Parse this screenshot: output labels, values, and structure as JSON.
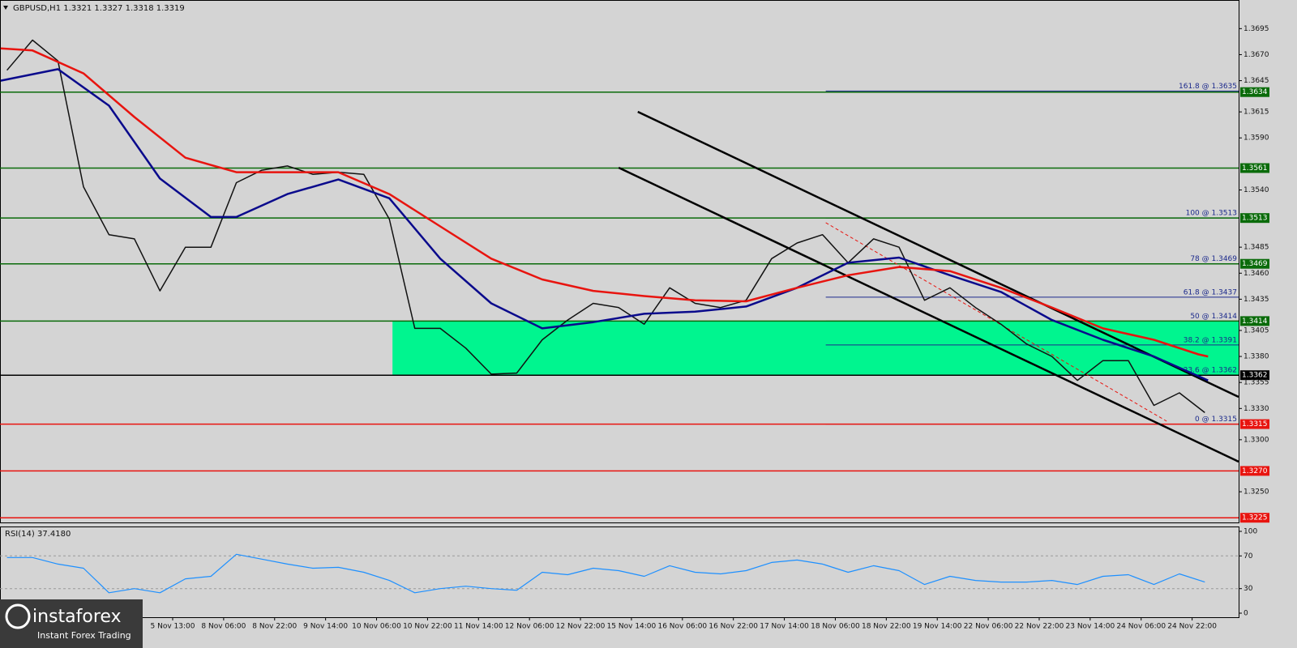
{
  "header": "GBPUSD,H1  1.3321 1.3327 1.3318 1.3319",
  "logo": {
    "name": "instaforex",
    "tagline": "Instant Forex Trading"
  },
  "chart_data": [
    {
      "type": "line",
      "xlim": [
        -54.2,
        334.6
      ],
      "ylim": [
        1.32205,
        1.37225
      ],
      "xticks": [
        {
          "value": 0,
          "label": "5 Nov 13:00"
        },
        {
          "value": 16,
          "label": "8 Nov 06:00"
        },
        {
          "value": 32,
          "label": "8 Nov 22:00"
        },
        {
          "value": 48,
          "label": "9 Nov 14:00"
        },
        {
          "value": 64,
          "label": "10 Nov 06:00"
        },
        {
          "value": 80,
          "label": "10 Nov 22:00"
        },
        {
          "value": 96,
          "label": "11 Nov 14:00"
        },
        {
          "value": 112,
          "label": "12 Nov 06:00"
        },
        {
          "value": 128,
          "label": "12 Nov 22:00"
        },
        {
          "value": 144,
          "label": "15 Nov 14:00"
        },
        {
          "value": 160,
          "label": "16 Nov 06:00"
        },
        {
          "value": 176,
          "label": "16 Nov 22:00"
        },
        {
          "value": 192,
          "label": "17 Nov 14:00"
        },
        {
          "value": 208,
          "label": "18 Nov 06:00"
        },
        {
          "value": 224,
          "label": "18 Nov 22:00"
        },
        {
          "value": 240,
          "label": "19 Nov 14:00"
        },
        {
          "value": 256,
          "label": "22 Nov 06:00"
        },
        {
          "value": 272,
          "label": "22 Nov 22:00"
        },
        {
          "value": 288,
          "label": "23 Nov 14:00"
        },
        {
          "value": 304,
          "label": "24 Nov 06:00"
        },
        {
          "value": 320,
          "label": "24 Nov 22:00"
        }
      ],
      "yticks": [
        1.3695,
        {
          "value": 1.367,
          "label": "1.3670"
        },
        1.3645,
        1.3615,
        {
          "value": 1.359,
          "label": "1.3590"
        },
        {
          "value": 1.354,
          "label": "1.3540"
        },
        1.3485,
        {
          "value": 1.346,
          "label": "1.3460"
        },
        1.3435,
        1.3405,
        {
          "value": 1.338,
          "label": "1.3380"
        },
        1.3355,
        {
          "value": 1.333,
          "label": "1.3330"
        },
        {
          "value": 1.33,
          "label": "1.3300"
        },
        {
          "value": 1.325,
          "label": "1.3250"
        }
      ],
      "series": [
        {
          "color": "#111111",
          "x": [
            -52,
            -44,
            -36,
            -28,
            -20,
            -12,
            -4,
            4,
            12,
            20,
            28,
            36,
            44,
            52,
            60,
            68,
            76,
            84,
            92,
            100,
            108,
            116,
            124,
            132,
            140,
            148,
            156,
            164,
            172,
            180,
            188,
            196,
            204,
            212,
            220,
            228,
            236,
            244,
            252,
            260,
            268,
            276,
            284,
            292,
            300,
            308,
            316,
            324
          ],
          "values": [
            1.3655,
            1.3684,
            1.3664,
            1.3543,
            1.3497,
            1.3493,
            1.3443,
            1.3485,
            1.3485,
            1.3547,
            1.3559,
            1.3563,
            1.3555,
            1.3557,
            1.3555,
            1.3512,
            1.3407,
            1.3407,
            1.3388,
            1.3363,
            1.3364,
            1.3396,
            1.3415,
            1.3431,
            1.3427,
            1.3411,
            1.3446,
            1.3431,
            1.3427,
            1.3434,
            1.3474,
            1.3489,
            1.3497,
            1.347,
            1.3493,
            1.3485,
            1.3434,
            1.3446,
            1.3427,
            1.3411,
            1.3392,
            1.338,
            1.3357,
            1.3376,
            1.3376,
            1.3333,
            1.3345,
            1.3326
          ]
        },
        {
          "color": "#0a0a8c",
          "x": [
            -54,
            -36,
            -20,
            -4,
            12,
            20,
            36,
            52,
            68,
            84,
            100,
            116,
            132,
            148,
            164,
            180,
            196,
            212,
            228,
            244,
            260,
            276,
            292,
            308,
            325
          ],
          "values": [
            1.3645,
            1.3656,
            1.3621,
            1.3551,
            1.3514,
            1.3514,
            1.3536,
            1.355,
            1.3532,
            1.3474,
            1.3431,
            1.3407,
            1.3413,
            1.3421,
            1.3423,
            1.3428,
            1.3446,
            1.347,
            1.3475,
            1.3458,
            1.3442,
            1.3415,
            1.3396,
            1.338,
            1.3357
          ]
        },
        {
          "color": "#e8140f",
          "x": [
            -54,
            -44,
            -28,
            -12,
            4,
            20,
            36,
            52,
            68,
            84,
            100,
            116,
            132,
            148,
            164,
            180,
            196,
            212,
            228,
            244,
            260,
            276,
            292,
            308,
            322,
            325
          ],
          "values": [
            1.3676,
            1.3674,
            1.3652,
            1.361,
            1.3571,
            1.3557,
            1.3557,
            1.3557,
            1.3536,
            1.3505,
            1.3474,
            1.3454,
            1.3443,
            1.3438,
            1.3434,
            1.3433,
            1.3446,
            1.3458,
            1.3466,
            1.3462,
            1.3446,
            1.3427,
            1.3407,
            1.3396,
            1.3382,
            1.338
          ]
        }
      ],
      "zone": {
        "x": 69,
        "low": 1.3362,
        "high": 1.3414,
        "color": "#00f58f"
      },
      "levels": [
        {
          "value": 1.3634,
          "label": "1.3634",
          "color": "#0a6b0a"
        },
        {
          "value": 1.3561,
          "label": "1.3561",
          "color": "#0a6b0a"
        },
        {
          "value": 1.3513,
          "label": "1.3513",
          "color": "#0a6b0a"
        },
        {
          "value": 1.3469,
          "label": "1.3469",
          "color": "#0a6b0a"
        },
        {
          "value": 1.3414,
          "label": "1.3414",
          "color": "#0a6b0a"
        },
        {
          "value": 1.3362,
          "label": "1.3362",
          "color": "#000000"
        },
        {
          "value": 1.3315,
          "label": "1.3315",
          "color": "#e8140f"
        },
        {
          "value": 1.327,
          "label": "1.3270",
          "color": "#e8140f"
        },
        {
          "value": 1.3225,
          "label": "1.3225",
          "color": "#e8140f"
        }
      ],
      "fib_levels": [
        {
          "value": 1.3635,
          "label": "161.8 @ 1.3635"
        },
        {
          "value": 1.3513,
          "label": "100 @ 1.3513"
        },
        {
          "value": 1.3469,
          "label": "78 @ 1.3469"
        },
        {
          "value": 1.3437,
          "label": "61.8 @ 1.3437"
        },
        {
          "value": 1.3414,
          "label": "50 @ 1.3414"
        },
        {
          "value": 1.3391,
          "label": "38.2 @ 1.3391"
        },
        {
          "value": 1.3362,
          "label": "23.6 @ 1.3362"
        },
        {
          "value": 1.3315,
          "label": "0 @ 1.3315"
        }
      ],
      "fib_x": 205,
      "trendlines": [
        {
          "x": [
            146,
            334.6
          ],
          "y": [
            1.36151,
            1.33411
          ],
          "color": "#000000"
        },
        {
          "x": [
            140,
            334.6
          ],
          "y": [
            1.35614,
            1.32789
          ],
          "color": "#000000"
        },
        {
          "x": [
            205,
            312
          ],
          "y": [
            1.35085,
            1.33178
          ],
          "color": "#e8140f",
          "dashed": true
        }
      ]
    },
    {
      "type": "line",
      "title": "RSI(14) 37.4180",
      "ylim": [
        0,
        100
      ],
      "yticks": [
        0,
        30,
        70,
        100
      ],
      "levels": [
        30,
        70
      ],
      "series": [
        {
          "color": "#1e90ff",
          "x": [
            -52,
            -44,
            -36,
            -28,
            -20,
            -12,
            -4,
            4,
            12,
            20,
            28,
            36,
            44,
            52,
            60,
            68,
            76,
            84,
            92,
            100,
            108,
            116,
            124,
            132,
            140,
            148,
            156,
            164,
            172,
            180,
            188,
            196,
            204,
            212,
            220,
            228,
            236,
            244,
            252,
            260,
            268,
            276,
            284,
            292,
            300,
            308,
            316,
            324
          ],
          "values": [
            68,
            68,
            60,
            55,
            25,
            30,
            25,
            42,
            45,
            72,
            66,
            60,
            55,
            56,
            50,
            40,
            25,
            30,
            33,
            30,
            28,
            50,
            47,
            55,
            52,
            45,
            58,
            50,
            48,
            52,
            62,
            65,
            60,
            50,
            58,
            52,
            35,
            45,
            40,
            38,
            38,
            40,
            35,
            45,
            47,
            35,
            48,
            38
          ]
        }
      ]
    }
  ]
}
